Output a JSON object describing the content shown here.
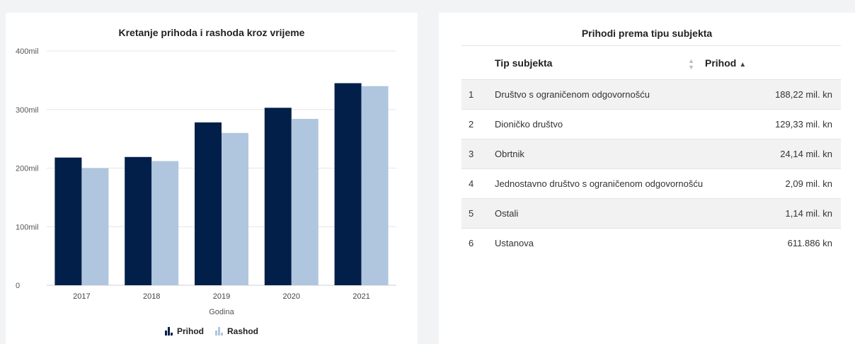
{
  "chart_panel": {
    "title": "Kretanje prihoda i rashoda kroz vrijeme",
    "legend": [
      {
        "name": "Prihod",
        "color": "#021f4a"
      },
      {
        "name": "Rashod",
        "color": "#b0c6de"
      }
    ]
  },
  "chart_data": {
    "type": "bar",
    "title": "Kretanje prihoda i rashoda kroz vrijeme",
    "xlabel": "Godina",
    "ylabel": "",
    "categories": [
      "2017",
      "2018",
      "2019",
      "2020",
      "2021"
    ],
    "yticks": [
      "0",
      "100mil",
      "200mil",
      "300mil",
      "400mil"
    ],
    "ylim": [
      0,
      400
    ],
    "grid": true,
    "legend_position": "bottom",
    "series": [
      {
        "name": "Prihod",
        "color": "#021f4a",
        "values": [
          218,
          219,
          278,
          303,
          345
        ]
      },
      {
        "name": "Rashod",
        "color": "#b0c6de",
        "values": [
          200,
          212,
          260,
          284,
          340
        ]
      }
    ]
  },
  "table_panel": {
    "title": "Prihodi prema tipu subjekta",
    "columns": {
      "type": "Tip subjekta",
      "value": "Prihod"
    },
    "rows": [
      {
        "idx": "1",
        "type": "Društvo s ograničenom odgovornošću",
        "value": "188,22 mil. kn"
      },
      {
        "idx": "2",
        "type": "Dioničko društvo",
        "value": "129,33 mil. kn"
      },
      {
        "idx": "3",
        "type": "Obrtnik",
        "value": "24,14 mil. kn"
      },
      {
        "idx": "4",
        "type": "Jednostavno društvo s ograničenom odgovornošću",
        "value": "2,09 mil. kn"
      },
      {
        "idx": "5",
        "type": "Ostali",
        "value": "1,14 mil. kn"
      },
      {
        "idx": "6",
        "type": "Ustanova",
        "value": "611.886 kn"
      }
    ]
  }
}
